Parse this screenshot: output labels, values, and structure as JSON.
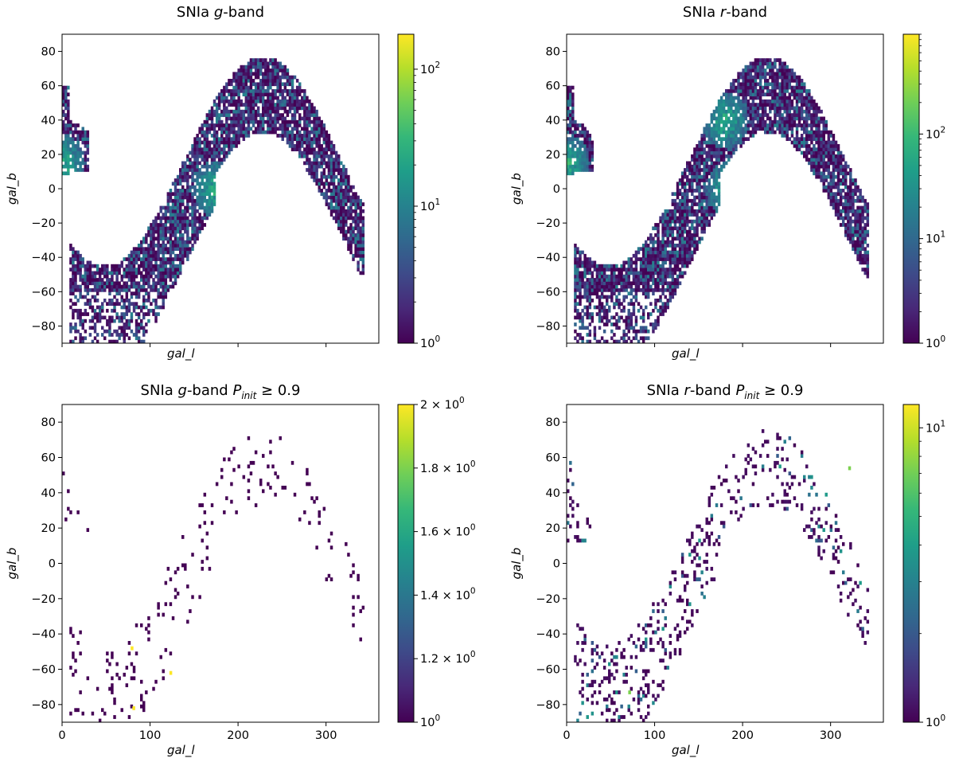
{
  "chart_data": [
    {
      "type": "heatmap",
      "title": "SNIa g-band",
      "title_parts": {
        "pre": "SNIa ",
        "band": "g",
        "post": "-band",
        "cut_sym": "",
        "cut_sub": "",
        "cut_rel": ""
      },
      "xlabel": "gal_l",
      "ylabel": "gal_b",
      "xlim": [
        0,
        360
      ],
      "ylim": [
        -90,
        90
      ],
      "yticks": [
        "80",
        "60",
        "40",
        "20",
        "0",
        "−20",
        "−40",
        "−60",
        "−80"
      ],
      "xticks": [],
      "colorbar": {
        "scale": "log",
        "min": 1,
        "max": 180,
        "ticks": [
          {
            "base": "10",
            "exp": "2"
          },
          {
            "base": "10",
            "exp": "1"
          },
          {
            "base": "10",
            "exp": "0"
          }
        ]
      },
      "density": "dense",
      "hot_spots": [
        [
          175,
          0
        ],
        [
          0,
          15
        ],
        [
          360,
          15
        ],
        [
          10,
          -15
        ]
      ]
    },
    {
      "type": "heatmap",
      "title": "SNIa r-band",
      "title_parts": {
        "pre": "SNIa ",
        "band": "r",
        "post": "-band",
        "cut_sym": "",
        "cut_sub": "",
        "cut_rel": ""
      },
      "xlabel": "gal_l",
      "ylabel": "gal_b",
      "xlim": [
        0,
        360
      ],
      "ylim": [
        -90,
        90
      ],
      "yticks": [
        "80",
        "60",
        "40",
        "20",
        "0",
        "−20",
        "−40",
        "−60",
        "−80"
      ],
      "xticks": [],
      "colorbar": {
        "scale": "log",
        "min": 1,
        "max": 900,
        "ticks": [
          {
            "base": "10",
            "exp": "2"
          },
          {
            "base": "10",
            "exp": "1"
          },
          {
            "base": "10",
            "exp": "0"
          }
        ]
      },
      "density": "dense",
      "hot_spots": [
        [
          185,
          0
        ],
        [
          0,
          15
        ],
        [
          360,
          15
        ],
        [
          10,
          -15
        ],
        [
          180,
          40
        ]
      ]
    },
    {
      "type": "heatmap",
      "title": "SNIa g-band P_init ≥ 0.9",
      "title_parts": {
        "pre": "SNIa ",
        "band": "g",
        "post": "-band ",
        "cut_sym": "P",
        "cut_sub": "init",
        "cut_rel": " ≥ 0.9"
      },
      "xlabel": "gal_l",
      "ylabel": "gal_b",
      "xlim": [
        0,
        360
      ],
      "ylim": [
        -90,
        90
      ],
      "yticks": [
        "80",
        "60",
        "40",
        "20",
        "0",
        "−20",
        "−40",
        "−60",
        "−80"
      ],
      "xticks": [
        "0",
        "100",
        "200",
        "300"
      ],
      "colorbar": {
        "scale": "linear",
        "min": 1.0,
        "max": 2.0,
        "ticks": [
          {
            "base": "2 × 10",
            "exp": "0"
          },
          {
            "base": "1.8 × 10",
            "exp": "0"
          },
          {
            "base": "1.6 × 10",
            "exp": "0"
          },
          {
            "base": "1.4 × 10",
            "exp": "0"
          },
          {
            "base": "1.2 × 10",
            "exp": "0"
          },
          {
            "base": "10",
            "exp": "0"
          }
        ]
      },
      "density": "sparse",
      "hot_spots": [
        [
          78,
          -47
        ],
        [
          122,
          -61
        ],
        [
          80,
          -81
        ]
      ]
    },
    {
      "type": "heatmap",
      "title": "SNIa r-band P_init ≥ 0.9",
      "title_parts": {
        "pre": "SNIa ",
        "band": "r",
        "post": "-band ",
        "cut_sym": "P",
        "cut_sub": "init",
        "cut_rel": " ≥ 0.9"
      },
      "xlabel": "gal_l",
      "ylabel": "gal_b",
      "xlim": [
        0,
        360
      ],
      "ylim": [
        -90,
        90
      ],
      "yticks": [
        "80",
        "60",
        "40",
        "20",
        "0",
        "−20",
        "−40",
        "−60",
        "−80"
      ],
      "xticks": [
        "0",
        "100",
        "200",
        "300"
      ],
      "colorbar": {
        "scale": "log",
        "min": 1,
        "max": 12,
        "ticks": [
          {
            "base": "10",
            "exp": "1"
          },
          {
            "base": "10",
            "exp": "0"
          }
        ]
      },
      "density": "medium",
      "hot_spots": [
        [
          320,
          55
        ],
        [
          70,
          -72
        ]
      ]
    }
  ],
  "colors": {
    "viridis_low": "#440154",
    "viridis_mid": "#21918c",
    "viridis_high": "#fde725"
  }
}
